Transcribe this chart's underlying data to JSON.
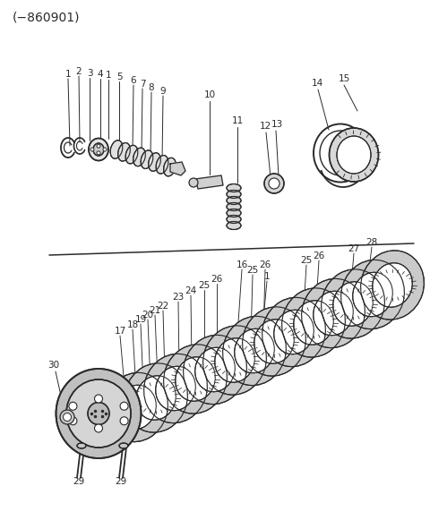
{
  "title": "(−860901)",
  "bg": "#ffffff",
  "lc": "#2a2a2a",
  "title_fs": 10,
  "lbl_fs": 7.5,
  "fig_w": 4.8,
  "fig_h": 5.81,
  "dpi": 100
}
